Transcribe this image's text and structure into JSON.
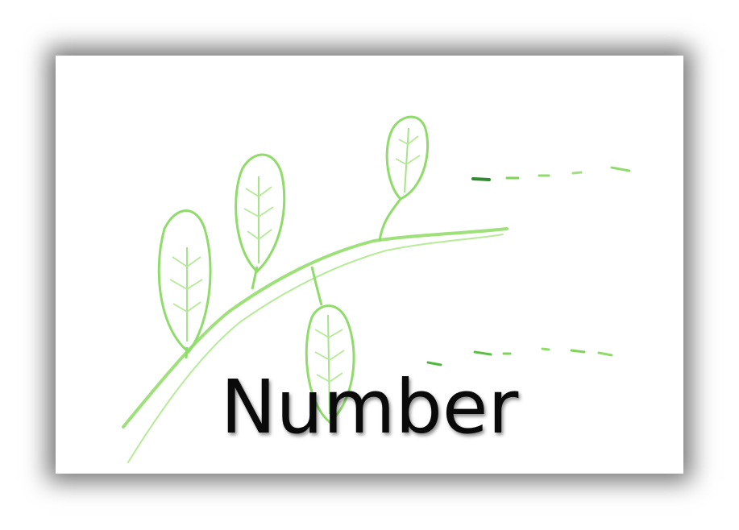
{
  "slide": {
    "word": "Number"
  },
  "colors": {
    "leaf_stroke": "#8fdc6a",
    "stem_stroke": "#9ee07a",
    "dash_dark": "#2e8b2e",
    "text": "#0a0a0a"
  }
}
